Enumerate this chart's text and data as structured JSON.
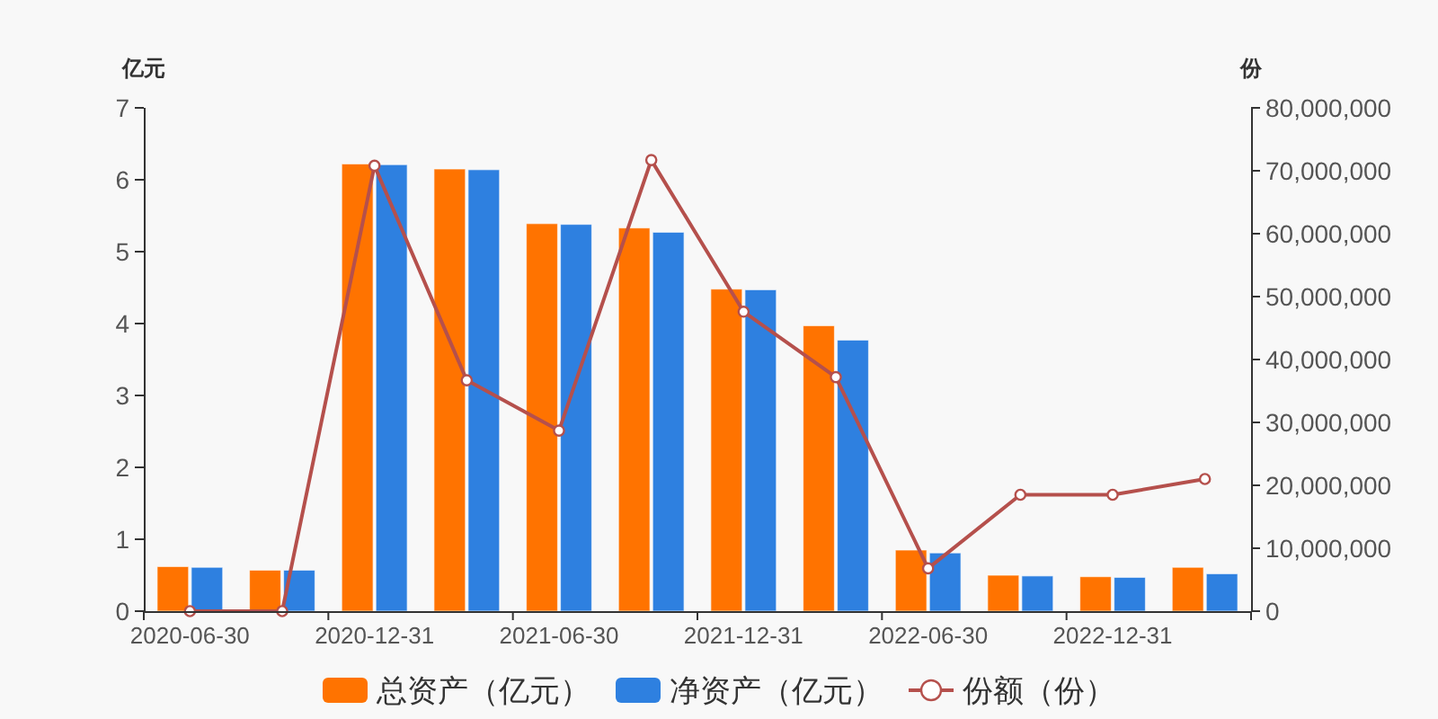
{
  "chart_data": {
    "type": "bar",
    "categories": [
      "2020-06-30",
      null,
      "2020-12-31",
      null,
      "2021-06-30",
      null,
      "2021-12-31",
      null,
      "2022-06-30",
      null,
      "2022-12-31",
      null
    ],
    "ylabel": "亿元",
    "y2label": "份",
    "ylim": [
      0,
      7
    ],
    "yticks": [
      0,
      1,
      2,
      3,
      4,
      5,
      6,
      7
    ],
    "y2lim": [
      0,
      80000000
    ],
    "y2ticks": [
      {
        "value": 0,
        "label": "0"
      },
      {
        "value": 10000000,
        "label": "10,000,000"
      },
      {
        "value": 20000000,
        "label": "20,000,000"
      },
      {
        "value": 30000000,
        "label": "30,000,000"
      },
      {
        "value": 40000000,
        "label": "40,000,000"
      },
      {
        "value": 50000000,
        "label": "50,000,000"
      },
      {
        "value": 60000000,
        "label": "60,000,000"
      },
      {
        "value": 70000000,
        "label": "70,000,000"
      },
      {
        "value": 80000000,
        "label": "80,000,000"
      }
    ],
    "legend": "bottom",
    "marker": "circle",
    "series": [
      {
        "name": "总资产（亿元）",
        "color": "#ff7300",
        "values": [
          0.62,
          0.57,
          6.22,
          6.15,
          5.39,
          5.33,
          4.48,
          3.97,
          0.85,
          0.5,
          0.48,
          0.61
        ]
      },
      {
        "name": "净资产（亿元）",
        "color": "#2e80e0",
        "values": [
          0.61,
          0.57,
          6.21,
          6.14,
          5.38,
          5.27,
          4.47,
          3.77,
          0.81,
          0.49,
          0.47,
          0.52
        ]
      },
      {
        "name": "份额（份）",
        "type": "line",
        "axis": "y2",
        "color": "#b5504c",
        "values": [
          0,
          0,
          70800000,
          36700000,
          28700000,
          71700000,
          47600000,
          37200000,
          6800000,
          18500000,
          18500000,
          21000000
        ]
      }
    ]
  }
}
